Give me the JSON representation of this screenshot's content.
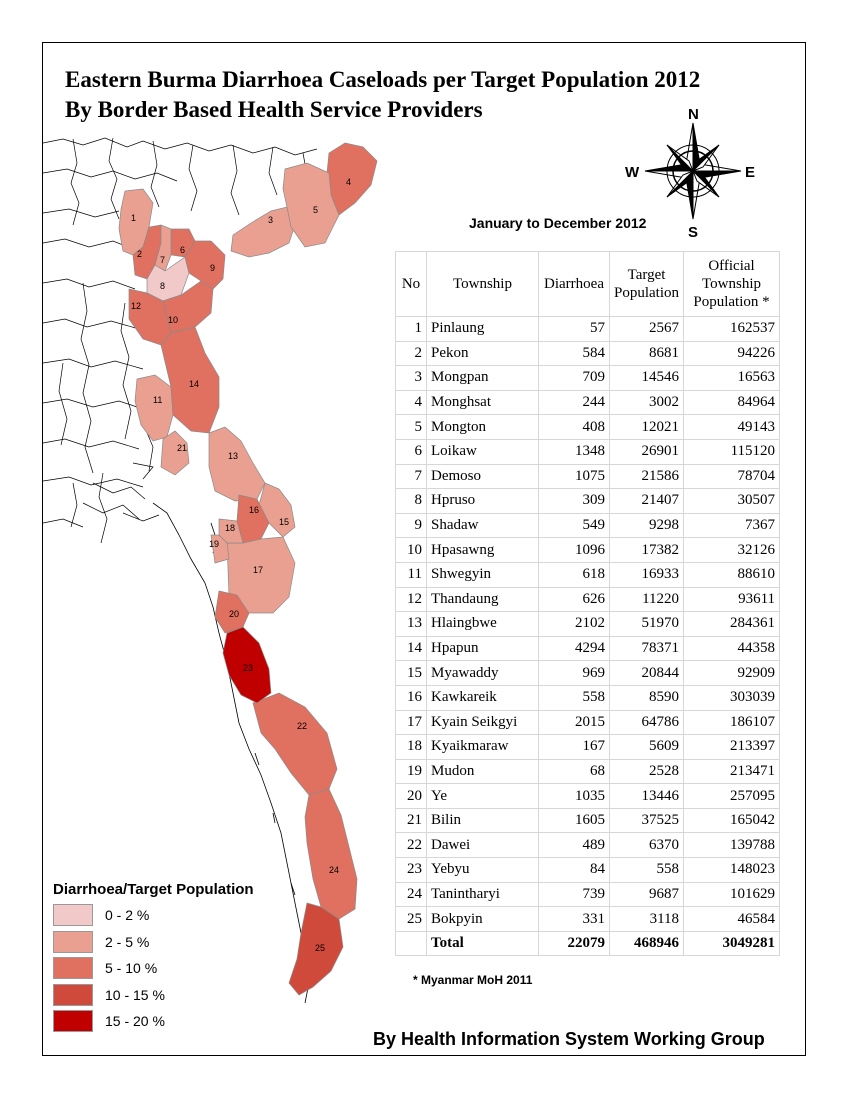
{
  "title_line1": "Eastern Burma Diarrhoea Caseloads per Target Population 2012",
  "title_line2": "By Border Based Health Service Providers",
  "period": "January to December 2012",
  "compass": {
    "n": "N",
    "s": "S",
    "e": "E",
    "w": "W"
  },
  "table": {
    "headers": {
      "no": "No",
      "township": "Township",
      "diarrhoea": "Diarrhoea",
      "target_l1": "Target",
      "target_l2": "Population",
      "official_l1": "Official",
      "official_l2": "Township",
      "official_l3": "Population *"
    },
    "rows": [
      {
        "no": "1",
        "township": "Pinlaung",
        "diarrhoea": "57",
        "target": "2567",
        "official": "162537"
      },
      {
        "no": "2",
        "township": "Pekon",
        "diarrhoea": "584",
        "target": "8681",
        "official": "94226"
      },
      {
        "no": "3",
        "township": "Mongpan",
        "diarrhoea": "709",
        "target": "14546",
        "official": "16563"
      },
      {
        "no": "4",
        "township": "Monghsat",
        "diarrhoea": "244",
        "target": "3002",
        "official": "84964"
      },
      {
        "no": "5",
        "township": "Mongton",
        "diarrhoea": "408",
        "target": "12021",
        "official": "49143"
      },
      {
        "no": "6",
        "township": "Loikaw",
        "diarrhoea": "1348",
        "target": "26901",
        "official": "115120"
      },
      {
        "no": "7",
        "township": "Demoso",
        "diarrhoea": "1075",
        "target": "21586",
        "official": "78704"
      },
      {
        "no": "8",
        "township": "Hpruso",
        "diarrhoea": "309",
        "target": "21407",
        "official": "30507"
      },
      {
        "no": "9",
        "township": "Shadaw",
        "diarrhoea": "549",
        "target": "9298",
        "official": "7367"
      },
      {
        "no": "10",
        "township": "Hpasawng",
        "diarrhoea": "1096",
        "target": "17382",
        "official": "32126"
      },
      {
        "no": "11",
        "township": "Shwegyin",
        "diarrhoea": "618",
        "target": "16933",
        "official": "88610"
      },
      {
        "no": "12",
        "township": "Thandaung",
        "diarrhoea": "626",
        "target": "11220",
        "official": "93611"
      },
      {
        "no": "13",
        "township": "Hlaingbwe",
        "diarrhoea": "2102",
        "target": "51970",
        "official": "284361"
      },
      {
        "no": "14",
        "township": "Hpapun",
        "diarrhoea": "4294",
        "target": "78371",
        "official": "44358"
      },
      {
        "no": "15",
        "township": "Myawaddy",
        "diarrhoea": "969",
        "target": "20844",
        "official": "92909"
      },
      {
        "no": "16",
        "township": "Kawkareik",
        "diarrhoea": "558",
        "target": "8590",
        "official": "303039"
      },
      {
        "no": "17",
        "township": "Kyain Seikgyi",
        "diarrhoea": "2015",
        "target": "64786",
        "official": "186107"
      },
      {
        "no": "18",
        "township": "Kyaikmaraw",
        "diarrhoea": "167",
        "target": "5609",
        "official": "213397"
      },
      {
        "no": "19",
        "township": "Mudon",
        "diarrhoea": "68",
        "target": "2528",
        "official": "213471"
      },
      {
        "no": "20",
        "township": "Ye",
        "diarrhoea": "1035",
        "target": "13446",
        "official": "257095"
      },
      {
        "no": "21",
        "township": "Bilin",
        "diarrhoea": "1605",
        "target": "37525",
        "official": "165042"
      },
      {
        "no": "22",
        "township": "Dawei",
        "diarrhoea": "489",
        "target": "6370",
        "official": "139788"
      },
      {
        "no": "23",
        "township": "Yebyu",
        "diarrhoea": "84",
        "target": "558",
        "official": "148023"
      },
      {
        "no": "24",
        "township": "Tanintharyi",
        "diarrhoea": "739",
        "target": "9687",
        "official": "101629"
      },
      {
        "no": "25",
        "township": "Bokpyin",
        "diarrhoea": "331",
        "target": "3118",
        "official": "46584"
      }
    ],
    "total": {
      "label": "Total",
      "diarrhoea": "22079",
      "target": "468946",
      "official": "3049281"
    }
  },
  "footnote": "* Myanmar MoH 2011",
  "credit": "By Health Information System Working Group",
  "legend": {
    "title": "Diarrhoea/Target Population",
    "items": [
      {
        "label": "0 - 2 %",
        "color": "#f2c9c9"
      },
      {
        "label": "2 - 5 %",
        "color": "#e9a090"
      },
      {
        "label": "5 - 10 %",
        "color": "#e07060"
      },
      {
        "label": "10 - 15 %",
        "color": "#d04a3c"
      },
      {
        "label": "15 - 20 %",
        "color": "#c00000"
      }
    ]
  },
  "township_classes": {
    "1": 1,
    "2": 2,
    "3": 1,
    "4": 2,
    "5": 1,
    "6": 2,
    "7": 1,
    "8": 0,
    "9": 2,
    "10": 2,
    "11": 1,
    "12": 2,
    "13": 1,
    "14": 2,
    "15": 1,
    "16": 2,
    "17": 1,
    "18": 1,
    "19": 1,
    "20": 2,
    "21": 1,
    "22": 2,
    "23": 4,
    "24": 2,
    "25": 3
  }
}
